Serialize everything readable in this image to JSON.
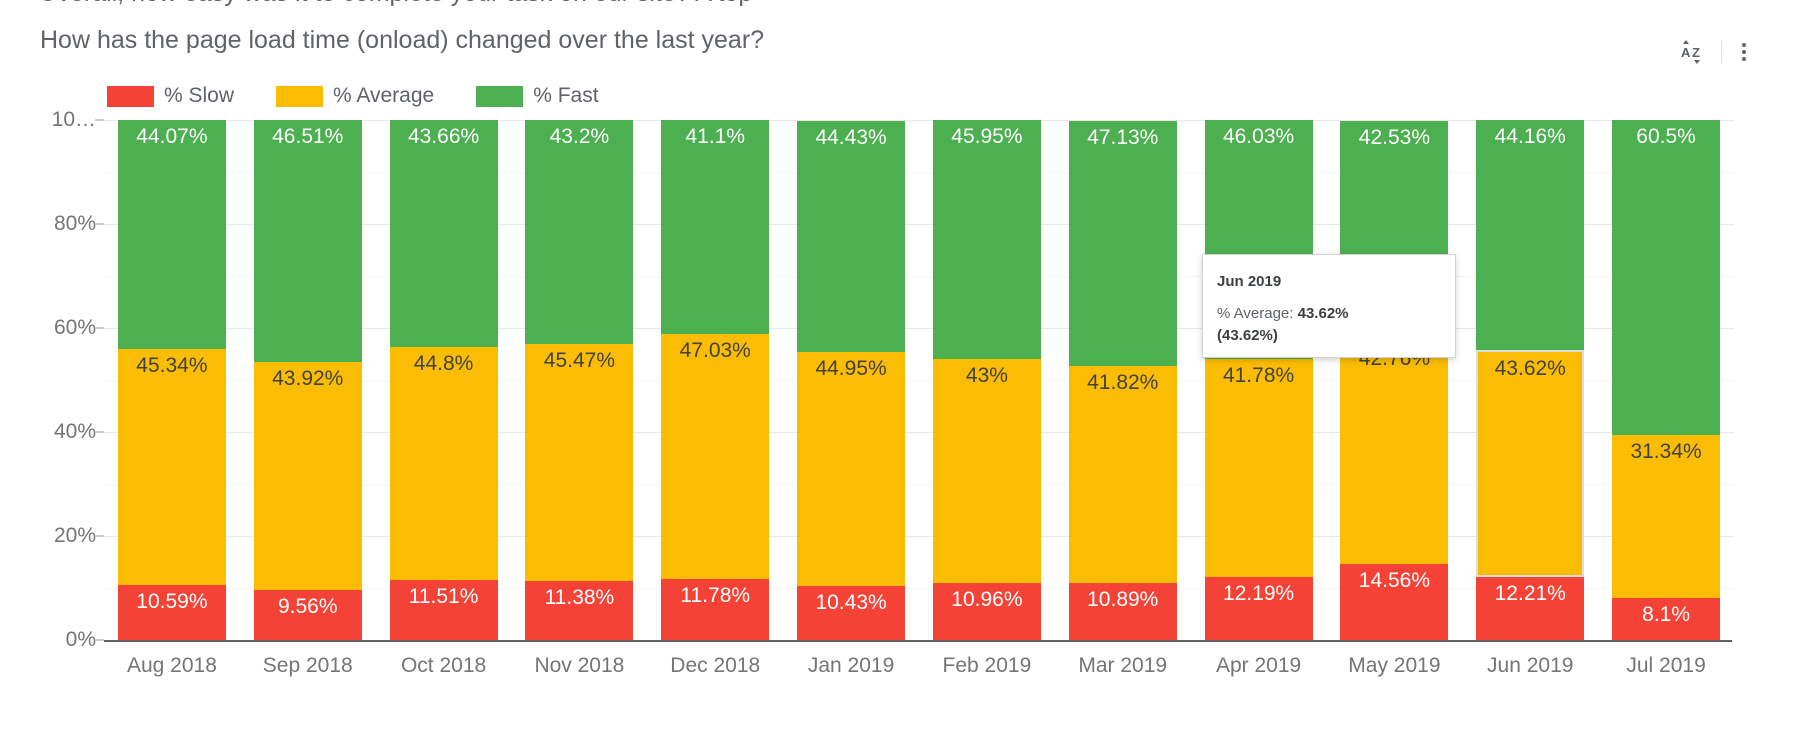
{
  "page": {
    "top_clipped_text": "Overall, how easy was it to complete your task on our site? A top",
    "title": "How has the page load time (onload) changed over the last year?"
  },
  "toolbar": {
    "sort_icon": "sort-az-icon",
    "menu_icon": "kebab-menu-icon"
  },
  "chart_data": {
    "type": "bar",
    "stacked": true,
    "title": "How has the page load time (onload) changed over the last year?",
    "categories": [
      "Aug 2018",
      "Sep 2018",
      "Oct 2018",
      "Nov 2018",
      "Dec 2018",
      "Jan 2019",
      "Feb 2019",
      "Mar 2019",
      "Apr 2019",
      "May 2019",
      "Jun 2019",
      "Jul 2019"
    ],
    "series": [
      {
        "name": "% Slow",
        "color": "#F44336",
        "label_color": "#ffffff",
        "values": [
          10.59,
          9.56,
          11.51,
          11.38,
          11.78,
          10.43,
          10.96,
          10.89,
          12.19,
          14.56,
          12.21,
          8.1
        ]
      },
      {
        "name": "% Average",
        "color": "#FBBC04",
        "label_color": "#424242",
        "values": [
          45.34,
          43.92,
          44.8,
          45.47,
          47.03,
          44.95,
          43,
          41.82,
          41.78,
          42.76,
          43.62,
          31.34
        ]
      },
      {
        "name": "% Fast",
        "color": "#4CAF50",
        "label_color": "#ffffff",
        "values": [
          44.07,
          46.51,
          43.66,
          43.2,
          41.1,
          44.43,
          45.95,
          47.13,
          46.03,
          42.53,
          44.16,
          60.5
        ]
      }
    ],
    "ylim": [
      0,
      100
    ],
    "y_ticks": [
      {
        "value": 0,
        "label": "0%"
      },
      {
        "value": 20,
        "label": "20%"
      },
      {
        "value": 40,
        "label": "40%"
      },
      {
        "value": 60,
        "label": "60%"
      },
      {
        "value": 80,
        "label": "80%"
      },
      {
        "value": 100,
        "label": "10…"
      }
    ],
    "grid": "horizontal every 10%",
    "legend_position": "top",
    "highlight": {
      "category_index": 10,
      "series_index": 1
    }
  },
  "tooltip": {
    "title": "Jun 2019",
    "line_label": "% Average: ",
    "value": "43.62%",
    "secondary": "(43.62%)"
  }
}
